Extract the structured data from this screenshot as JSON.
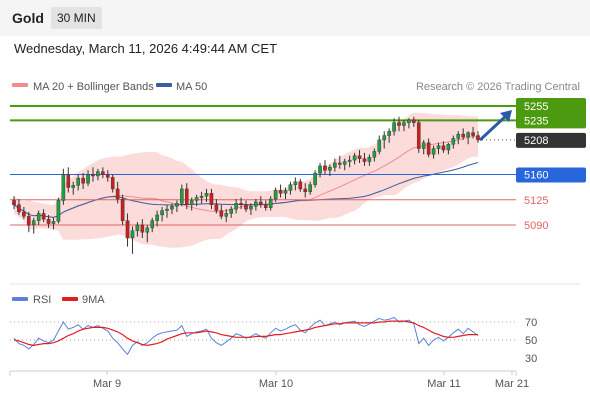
{
  "header": {
    "instrument": "Gold",
    "timeframe": "30 MIN"
  },
  "datetime": "Wednesday, March 11, 2026 4:49:44 AM CET",
  "legend": {
    "item1": "MA 20 + Bollinger Bands",
    "item2": "MA 50",
    "credit": "Research © 2026 Trading Central"
  },
  "colors": {
    "up": "#1f9e40",
    "down": "#c8201e",
    "ma20": "#f08c8c",
    "ma50": "#3b5e9c",
    "band": "#fbd2d2",
    "resistance": "#4c9a0f",
    "pivot": "#2866dc",
    "support": "#e06666",
    "current": "#333333",
    "rsi": "#5a82d8",
    "rsi_ma": "#e02020",
    "arrow": "#2a5aa8"
  },
  "chart_data": [
    {
      "type": "candlestick",
      "title": "Gold",
      "timeframe": "30 MIN",
      "ylim": [
        5060,
        5265
      ],
      "x_ticks": [
        "Mar 9",
        "Mar 10",
        "Mar 11",
        "Mar 21"
      ],
      "series": [
        {
          "name": "MA 20 + Bollinger Bands",
          "color": "#f08c8c"
        },
        {
          "name": "MA 50",
          "color": "#3b5e9c"
        }
      ],
      "levels": [
        {
          "label": "5255",
          "value": 5255,
          "kind": "resistance"
        },
        {
          "label": "5235",
          "value": 5235,
          "kind": "resistance"
        },
        {
          "label": "5208",
          "value": 5208,
          "kind": "current"
        },
        {
          "label": "5160",
          "value": 5160,
          "kind": "pivot"
        },
        {
          "label": "5125",
          "value": 5125,
          "kind": "support"
        },
        {
          "label": "5090",
          "value": 5090,
          "kind": "support"
        }
      ],
      "candles": [
        [
          5124,
          5130,
          5112,
          5118
        ],
        [
          5118,
          5126,
          5104,
          5108
        ],
        [
          5108,
          5115,
          5098,
          5102
        ],
        [
          5102,
          5108,
          5080,
          5090
        ],
        [
          5090,
          5100,
          5078,
          5096
        ],
        [
          5096,
          5110,
          5090,
          5106
        ],
        [
          5106,
          5112,
          5094,
          5098
        ],
        [
          5098,
          5104,
          5086,
          5092
        ],
        [
          5092,
          5100,
          5084,
          5095
        ],
        [
          5095,
          5128,
          5092,
          5124
        ],
        [
          5124,
          5168,
          5118,
          5160
        ],
        [
          5160,
          5170,
          5135,
          5142
        ],
        [
          5142,
          5150,
          5132,
          5145
        ],
        [
          5145,
          5160,
          5138,
          5155
        ],
        [
          5155,
          5162,
          5140,
          5148
        ],
        [
          5148,
          5166,
          5144,
          5160
        ],
        [
          5160,
          5170,
          5150,
          5158
        ],
        [
          5158,
          5168,
          5152,
          5164
        ],
        [
          5164,
          5170,
          5155,
          5160
        ],
        [
          5160,
          5166,
          5150,
          5156
        ],
        [
          5156,
          5160,
          5135,
          5140
        ],
        [
          5140,
          5150,
          5120,
          5126
        ],
        [
          5126,
          5132,
          5090,
          5096
        ],
        [
          5096,
          5106,
          5060,
          5072
        ],
        [
          5072,
          5088,
          5050,
          5082
        ],
        [
          5082,
          5094,
          5074,
          5090
        ],
        [
          5090,
          5098,
          5072,
          5080
        ],
        [
          5080,
          5090,
          5066,
          5086
        ],
        [
          5086,
          5100,
          5080,
          5096
        ],
        [
          5096,
          5110,
          5088,
          5104
        ],
        [
          5104,
          5115,
          5095,
          5110
        ],
        [
          5110,
          5118,
          5100,
          5112
        ],
        [
          5112,
          5120,
          5105,
          5116
        ],
        [
          5116,
          5124,
          5108,
          5120
        ],
        [
          5120,
          5146,
          5116,
          5140
        ],
        [
          5140,
          5148,
          5112,
          5118
        ],
        [
          5118,
          5128,
          5110,
          5124
        ],
        [
          5124,
          5132,
          5116,
          5128
        ],
        [
          5128,
          5136,
          5120,
          5130
        ],
        [
          5130,
          5140,
          5122,
          5134
        ],
        [
          5134,
          5140,
          5112,
          5118
        ],
        [
          5118,
          5126,
          5106,
          5110
        ],
        [
          5110,
          5118,
          5098,
          5102
        ],
        [
          5102,
          5112,
          5094,
          5106
        ],
        [
          5106,
          5116,
          5100,
          5112
        ],
        [
          5112,
          5126,
          5106,
          5120
        ],
        [
          5120,
          5128,
          5112,
          5118
        ],
        [
          5118,
          5124,
          5108,
          5112
        ],
        [
          5112,
          5120,
          5104,
          5116
        ],
        [
          5116,
          5126,
          5110,
          5122
        ],
        [
          5122,
          5130,
          5114,
          5118
        ],
        [
          5118,
          5124,
          5110,
          5114
        ],
        [
          5114,
          5130,
          5110,
          5126
        ],
        [
          5126,
          5142,
          5122,
          5138
        ],
        [
          5138,
          5146,
          5128,
          5134
        ],
        [
          5134,
          5142,
          5126,
          5138
        ],
        [
          5138,
          5150,
          5132,
          5146
        ],
        [
          5146,
          5156,
          5138,
          5150
        ],
        [
          5150,
          5154,
          5136,
          5140
        ],
        [
          5140,
          5148,
          5128,
          5136
        ],
        [
          5136,
          5150,
          5132,
          5146
        ],
        [
          5146,
          5166,
          5142,
          5162
        ],
        [
          5162,
          5176,
          5156,
          5172
        ],
        [
          5172,
          5180,
          5160,
          5166
        ],
        [
          5166,
          5174,
          5158,
          5170
        ],
        [
          5170,
          5182,
          5164,
          5176
        ],
        [
          5176,
          5186,
          5168,
          5174
        ],
        [
          5174,
          5182,
          5166,
          5178
        ],
        [
          5178,
          5186,
          5170,
          5180
        ],
        [
          5180,
          5190,
          5174,
          5186
        ],
        [
          5186,
          5194,
          5176,
          5182
        ],
        [
          5182,
          5190,
          5172,
          5178
        ],
        [
          5178,
          5188,
          5172,
          5184
        ],
        [
          5184,
          5196,
          5178,
          5192
        ],
        [
          5192,
          5214,
          5188,
          5208
        ],
        [
          5208,
          5220,
          5196,
          5214
        ],
        [
          5214,
          5224,
          5204,
          5220
        ],
        [
          5220,
          5238,
          5214,
          5232
        ],
        [
          5232,
          5240,
          5220,
          5228
        ],
        [
          5228,
          5236,
          5220,
          5232
        ],
        [
          5232,
          5238,
          5224,
          5236
        ],
        [
          5236,
          5240,
          5226,
          5232
        ],
        [
          5232,
          5236,
          5190,
          5196
        ],
        [
          5196,
          5208,
          5188,
          5204
        ],
        [
          5204,
          5210,
          5184,
          5188
        ],
        [
          5188,
          5200,
          5182,
          5196
        ],
        [
          5196,
          5204,
          5188,
          5200
        ],
        [
          5200,
          5206,
          5190,
          5194
        ],
        [
          5194,
          5204,
          5188,
          5202
        ],
        [
          5202,
          5214,
          5196,
          5210
        ],
        [
          5210,
          5220,
          5202,
          5216
        ],
        [
          5216,
          5224,
          5208,
          5212
        ],
        [
          5212,
          5220,
          5202,
          5218
        ],
        [
          5218,
          5226,
          5210,
          5214
        ],
        [
          5214,
          5220,
          5204,
          5208
        ]
      ]
    },
    {
      "type": "line",
      "title": "RSI",
      "ylim": [
        20,
        80
      ],
      "y_ticks": [
        70,
        50,
        30
      ],
      "series": [
        {
          "name": "RSI",
          "color": "#5a82d8",
          "values": [
            52,
            46,
            44,
            40,
            45,
            52,
            49,
            47,
            50,
            60,
            70,
            62,
            64,
            67,
            62,
            66,
            64,
            66,
            63,
            60,
            52,
            47,
            40,
            34,
            44,
            48,
            44,
            47,
            52,
            56,
            58,
            59,
            60,
            61,
            66,
            54,
            57,
            59,
            60,
            62,
            52,
            47,
            44,
            48,
            52,
            57,
            55,
            52,
            54,
            57,
            54,
            52,
            58,
            63,
            60,
            62,
            65,
            67,
            61,
            58,
            64,
            69,
            72,
            66,
            68,
            70,
            67,
            69,
            70,
            71,
            67,
            65,
            68,
            71,
            74,
            72,
            73,
            75,
            70,
            71,
            72,
            68,
            46,
            52,
            44,
            50,
            53,
            49,
            53,
            58,
            62,
            57,
            63,
            59,
            55
          ]
        },
        {
          "name": "9MA",
          "color": "#e02020",
          "values": [
            50,
            49,
            47,
            45,
            44,
            45,
            46,
            46,
            47,
            49,
            52,
            55,
            57,
            60,
            62,
            63,
            64,
            64,
            64,
            63,
            61,
            59,
            56,
            52,
            49,
            47,
            45,
            44,
            45,
            46,
            48,
            51,
            53,
            55,
            57,
            58,
            58,
            58,
            59,
            60,
            59,
            58,
            56,
            55,
            54,
            53,
            53,
            53,
            53,
            54,
            54,
            54,
            55,
            56,
            56,
            57,
            58,
            59,
            60,
            61,
            62,
            64,
            65,
            66,
            67,
            68,
            68,
            69,
            69,
            69,
            69,
            69,
            69,
            69,
            70,
            70,
            71,
            71,
            71,
            71,
            70,
            69,
            66,
            64,
            61,
            58,
            56,
            54,
            53,
            53,
            54,
            55,
            56,
            56,
            56
          ]
        }
      ]
    }
  ]
}
